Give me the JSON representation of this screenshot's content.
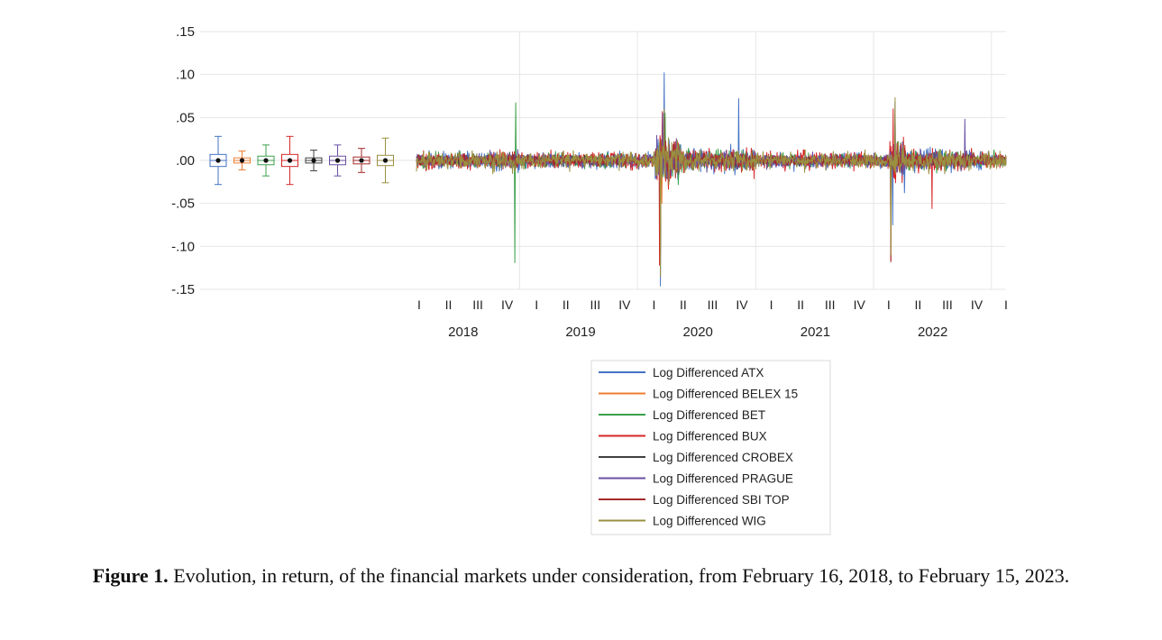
{
  "caption": {
    "label": "Figure 1.",
    "text": " Evolution, in return, of the financial markets under consideration, from February 16, 2018, to February 15, 2023."
  },
  "chart_data": {
    "type": "line",
    "title": "",
    "xlabel": "",
    "ylabel": "",
    "x_range": [
      "2018-02-16",
      "2023-02-15"
    ],
    "ylim": [
      -0.15,
      0.15
    ],
    "y_ticks": [
      0.15,
      0.1,
      0.05,
      0.0,
      -0.05,
      -0.1,
      -0.15
    ],
    "y_tick_labels": [
      ".15",
      ".10",
      ".05",
      ".00",
      "-.05",
      "-.10",
      "-.15"
    ],
    "years": [
      "2018",
      "2019",
      "2020",
      "2021",
      "2022"
    ],
    "quarter_labels": [
      "I",
      "II",
      "III",
      "IV",
      "I",
      "II",
      "III",
      "IV",
      "I",
      "II",
      "III",
      "IV",
      "I",
      "II",
      "III",
      "IV",
      "I",
      "II",
      "III",
      "IV",
      "I"
    ],
    "grid": true,
    "legend_position": "bottom-center",
    "boxplots": [
      {
        "name": "Log Differenced ATX",
        "color": "#4472C4",
        "min": -0.028,
        "q1": -0.007,
        "median": 0.0,
        "q3": 0.007,
        "max": 0.028
      },
      {
        "name": "Log Differenced BELEX 15",
        "color": "#ED7D31",
        "min": -0.011,
        "q1": -0.003,
        "median": 0.0,
        "q3": 0.003,
        "max": 0.011
      },
      {
        "name": "Log Differenced BET",
        "color": "#3CA04C",
        "min": -0.018,
        "q1": -0.005,
        "median": 0.0,
        "q3": 0.005,
        "max": 0.018
      },
      {
        "name": "Log Differenced BUX",
        "color": "#D62728",
        "min": -0.028,
        "q1": -0.007,
        "median": 0.0,
        "q3": 0.007,
        "max": 0.028
      },
      {
        "name": "Log Differenced CROBEX",
        "color": "#404040",
        "min": -0.012,
        "q1": -0.003,
        "median": 0.0,
        "q3": 0.003,
        "max": 0.012
      },
      {
        "name": "Log Differenced PRAGUE",
        "color": "#6A4FA3",
        "min": -0.018,
        "q1": -0.005,
        "median": 0.0,
        "q3": 0.005,
        "max": 0.018
      },
      {
        "name": "Log Differenced SBI TOP",
        "color": "#A52A2A",
        "min": -0.014,
        "q1": -0.004,
        "median": 0.0,
        "q3": 0.004,
        "max": 0.014
      },
      {
        "name": "Log Differenced WIG",
        "color": "#9A9040",
        "min": -0.026,
        "q1": -0.006,
        "median": 0.0,
        "q3": 0.006,
        "max": 0.026
      }
    ],
    "series": [
      {
        "name": "Log Differenced ATX",
        "color": "#4472C4",
        "vol": 0.011,
        "spikes": [
          [
            "2020-03-12",
            -0.146
          ],
          [
            "2020-03-24",
            0.102
          ],
          [
            "2020-11-09",
            0.072
          ],
          [
            "2022-03-09",
            0.068
          ],
          [
            "2022-03-01",
            -0.075
          ]
        ]
      },
      {
        "name": "Log Differenced BELEX 15",
        "color": "#ED7D31",
        "vol": 0.004,
        "spikes": [
          [
            "2020-03-16",
            -0.05
          ],
          [
            "2020-03-25",
            0.04
          ]
        ]
      },
      {
        "name": "Log Differenced BET",
        "color": "#3CA04C",
        "vol": 0.009,
        "spikes": [
          [
            "2018-12-18",
            -0.119
          ],
          [
            "2018-12-20",
            0.067
          ],
          [
            "2020-03-12",
            -0.08
          ],
          [
            "2020-03-27",
            0.055
          ]
        ]
      },
      {
        "name": "Log Differenced BUX",
        "color": "#D62728",
        "vol": 0.011,
        "spikes": [
          [
            "2020-03-09",
            -0.122
          ],
          [
            "2020-03-18",
            0.057
          ],
          [
            "2022-02-24",
            -0.116
          ],
          [
            "2022-03-03",
            0.06
          ],
          [
            "2022-07-01",
            -0.056
          ]
        ]
      },
      {
        "name": "Log Differenced CROBEX",
        "color": "#404040",
        "vol": 0.006,
        "spikes": [
          [
            "2020-03-12",
            -0.09
          ],
          [
            "2020-03-25",
            0.05
          ]
        ]
      },
      {
        "name": "Log Differenced PRAGUE",
        "color": "#6A4FA3",
        "vol": 0.009,
        "spikes": [
          [
            "2020-03-12",
            -0.085
          ],
          [
            "2020-03-20",
            0.055
          ],
          [
            "2022-03-09",
            0.055
          ],
          [
            "2022-10-10",
            0.048
          ]
        ]
      },
      {
        "name": "Log Differenced SBI TOP",
        "color": "#A52A2A",
        "vol": 0.007,
        "spikes": [
          [
            "2020-03-12",
            -0.11
          ],
          [
            "2022-02-24",
            -0.118
          ]
        ]
      },
      {
        "name": "Log Differenced WIG",
        "color": "#9A9040",
        "vol": 0.011,
        "spikes": [
          [
            "2020-03-12",
            -0.135
          ],
          [
            "2020-03-24",
            0.06
          ],
          [
            "2022-03-09",
            0.073
          ],
          [
            "2022-02-24",
            -0.11
          ]
        ]
      }
    ]
  }
}
